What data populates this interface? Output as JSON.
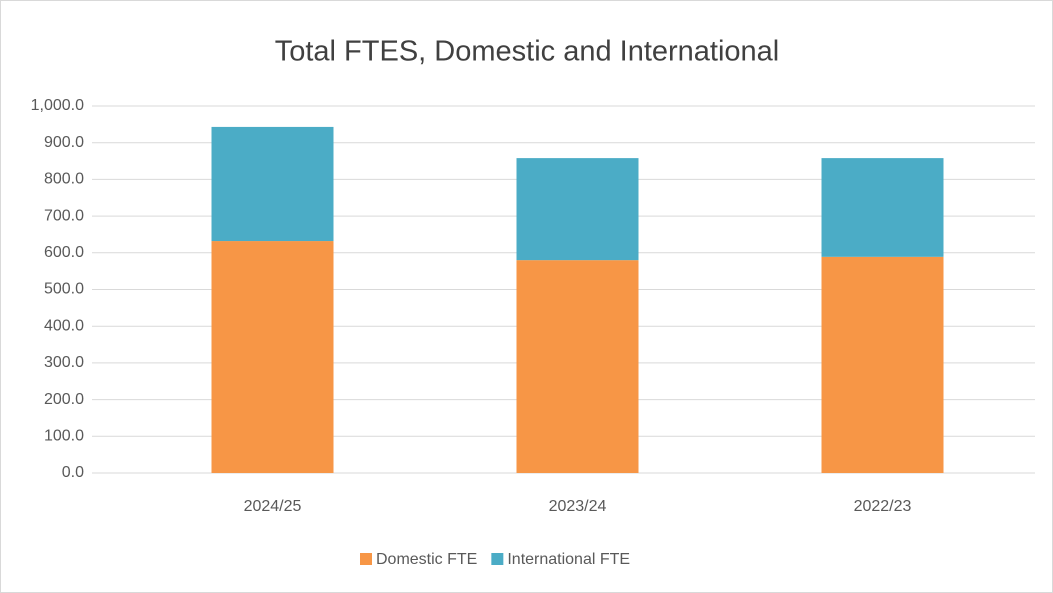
{
  "chart_data": {
    "type": "stacked_bar",
    "title": "Total FTES, Domestic and International",
    "categories": [
      "2024/25",
      "2023/24",
      "2022/23"
    ],
    "series": [
      {
        "name": "Domestic FTE",
        "color": "#f79646",
        "values": [
          632,
          580,
          589
        ]
      },
      {
        "name": "International FTE",
        "color": "#4bacc6",
        "values": [
          311,
          278,
          269
        ]
      }
    ],
    "ylim": [
      0,
      1000
    ],
    "yticks": [
      {
        "value": 0,
        "label": "0.0"
      },
      {
        "value": 100,
        "label": "100.0"
      },
      {
        "value": 200,
        "label": "200.0"
      },
      {
        "value": 300,
        "label": "300.0"
      },
      {
        "value": 400,
        "label": "400.0"
      },
      {
        "value": 500,
        "label": "500.0"
      },
      {
        "value": 600,
        "label": "600.0"
      },
      {
        "value": 700,
        "label": "700.0"
      },
      {
        "value": 800,
        "label": "800.0"
      },
      {
        "value": 900,
        "label": "900.0"
      },
      {
        "value": 1000,
        "label": "1,000.0"
      }
    ],
    "grid": true,
    "legend": "bottom"
  }
}
